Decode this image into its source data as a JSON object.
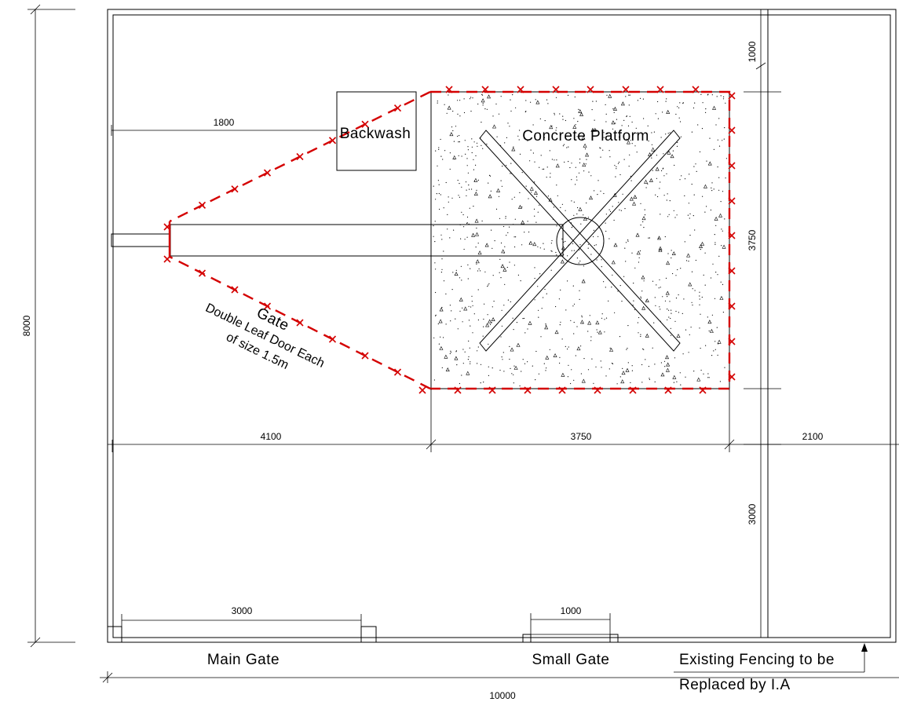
{
  "labels": {
    "backwash": "Backwash",
    "concrete_platform": "Concrete Platform",
    "gate": "Gate",
    "gate_note_1": "Double Leaf Door Each",
    "gate_note_2": "of size 1.5m",
    "main_gate": "Main Gate",
    "small_gate": "Small Gate",
    "fencing_note_1": "Existing Fencing to be",
    "fencing_note_2": "Replaced by I.A"
  },
  "dimensions": {
    "backwash_offset": "1800",
    "top_margin": "1000",
    "platform_height": "3750",
    "left_width": "4100",
    "platform_width": "3750",
    "right_width": "2100",
    "bottom_margin": "3000",
    "main_gate_width": "3000",
    "small_gate_width": "1000",
    "overall_width": "10000",
    "overall_height": "8000"
  },
  "colors": {
    "line": "#000000",
    "fence": "#d40000",
    "background": "#ffffff"
  }
}
